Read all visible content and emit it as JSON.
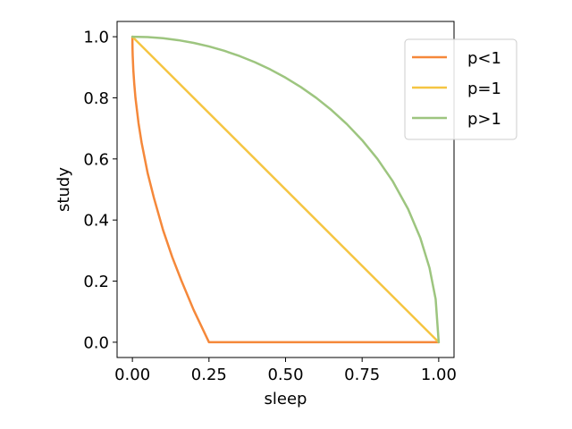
{
  "chart_data": {
    "type": "line",
    "title": "",
    "xlabel": "sleep",
    "ylabel": "study",
    "xlim": [
      -0.05,
      1.05
    ],
    "ylim": [
      -0.05,
      1.05
    ],
    "xticks": [
      0.0,
      0.25,
      0.5,
      0.75,
      1.0
    ],
    "xtick_labels": [
      "0.00",
      "0.25",
      "0.50",
      "0.75",
      "1.00"
    ],
    "yticks": [
      0.0,
      0.2,
      0.4,
      0.6,
      0.8,
      1.0
    ],
    "ytick_labels": [
      "0.0",
      "0.2",
      "0.4",
      "0.6",
      "0.8",
      "1.0"
    ],
    "grid": false,
    "legend_position": "top-right",
    "series": [
      {
        "name": "p<1",
        "color": "#f5883a",
        "x": [
          0,
          0.0001,
          0.0005,
          0.001,
          0.003,
          0.006,
          0.01,
          0.02,
          0.03,
          0.05,
          0.07,
          0.1,
          0.13,
          0.16,
          0.2,
          0.25,
          0.3,
          0.35,
          0.4,
          0.45,
          0.5,
          0.55,
          0.6,
          0.65,
          0.7,
          0.75,
          0.8,
          0.85,
          0.9,
          0.95,
          0.98,
          1
        ],
        "y": [
          1,
          0.9802,
          0.9557,
          0.9375,
          0.8915,
          0.847,
          0.8,
          0.7172,
          0.6536,
          0.5528,
          0.4734,
          0.3675,
          0.2789,
          0.2016,
          0.1056,
          0.0,
          0.0,
          0.0,
          0.0,
          0.0,
          0.0,
          0.0,
          0.0,
          0.0,
          0.0,
          0.0,
          0.0,
          0.0,
          0.0,
          0.0,
          0.0,
          0
        ]
      },
      {
        "name": "p=1",
        "color": "#f5c542",
        "x": [
          0,
          1
        ],
        "y": [
          1,
          0
        ]
      },
      {
        "name": "p>1",
        "color": "#9dc57f",
        "x": [
          0,
          0.05,
          0.1,
          0.15,
          0.2,
          0.25,
          0.3,
          0.35,
          0.4,
          0.45,
          0.5,
          0.55,
          0.6,
          0.65,
          0.7,
          0.75,
          0.8,
          0.85,
          0.9,
          0.94,
          0.97,
          0.99,
          1
        ],
        "y": [
          1,
          0.9987,
          0.995,
          0.9887,
          0.9798,
          0.9682,
          0.9539,
          0.9367,
          0.9165,
          0.893,
          0.866,
          0.8352,
          0.8,
          0.7599,
          0.7141,
          0.6614,
          0.6,
          0.5268,
          0.4359,
          0.3412,
          0.2431,
          0.1411,
          0
        ]
      }
    ]
  }
}
